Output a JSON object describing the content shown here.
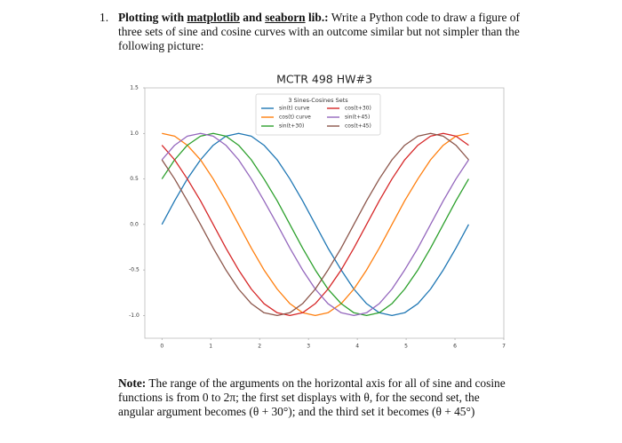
{
  "question": {
    "number": "1.",
    "heading_parts": [
      "Plotting with ",
      "matplotlib",
      " and ",
      "seaborn",
      " lib.:"
    ],
    "text": "Write a Python code to draw a figure of three sets of sine and cosine curves with an outcome similar but not simpler than the following picture:"
  },
  "note": {
    "label": "Note:",
    "text": "The range of the arguments on the horizontal axis for all of sine and cosine functions is from 0 to 2π; the first set displays with θ, for the second set, the angular argument becomes (θ + 30°); and the third set it becomes (θ + 45°)"
  },
  "chart_data": {
    "type": "line",
    "title": "MCTR 498 HW#3",
    "legend_title": "3 Sines-Cosines Sets",
    "x": [
      0,
      0.26,
      0.52,
      0.79,
      1.05,
      1.31,
      1.57,
      1.83,
      2.09,
      2.36,
      2.62,
      2.88,
      3.14,
      3.4,
      3.67,
      3.93,
      4.19,
      4.45,
      4.71,
      4.97,
      5.24,
      5.5,
      5.76,
      6.02,
      6.28
    ],
    "series": [
      {
        "name": "sin(t) curve",
        "color": "#1f77b4",
        "values": [
          0,
          0.26,
          0.5,
          0.71,
          0.87,
          0.97,
          1,
          0.97,
          0.87,
          0.71,
          0.5,
          0.26,
          0,
          -0.26,
          -0.5,
          -0.71,
          -0.87,
          -0.97,
          -1,
          -0.97,
          -0.87,
          -0.71,
          -0.5,
          -0.26,
          0
        ]
      },
      {
        "name": "cos(t) curve",
        "color": "#ff7f0e",
        "values": [
          1,
          0.97,
          0.87,
          0.71,
          0.5,
          0.26,
          0,
          -0.26,
          -0.5,
          -0.71,
          -0.87,
          -0.97,
          -1,
          -0.97,
          -0.87,
          -0.71,
          -0.5,
          -0.26,
          0,
          0.26,
          0.5,
          0.71,
          0.87,
          0.97,
          1
        ]
      },
      {
        "name": "sin(t+30)",
        "color": "#2ca02c",
        "values": [
          0.5,
          0.71,
          0.87,
          0.97,
          1,
          0.97,
          0.87,
          0.71,
          0.5,
          0.26,
          0,
          -0.26,
          -0.5,
          -0.71,
          -0.87,
          -0.97,
          -1,
          -0.97,
          -0.87,
          -0.71,
          -0.5,
          -0.26,
          0,
          0.26,
          0.5
        ]
      },
      {
        "name": "cos(t+30)",
        "color": "#d62728",
        "values": [
          0.87,
          0.71,
          0.5,
          0.26,
          0,
          -0.26,
          -0.5,
          -0.71,
          -0.87,
          -0.97,
          -1,
          -0.97,
          -0.87,
          -0.71,
          -0.5,
          -0.26,
          0,
          0.26,
          0.5,
          0.71,
          0.87,
          0.97,
          1,
          0.97,
          0.87
        ]
      },
      {
        "name": "sin(t+45)",
        "color": "#9467bd",
        "values": [
          0.71,
          0.87,
          0.97,
          1,
          0.97,
          0.87,
          0.71,
          0.5,
          0.26,
          0,
          -0.26,
          -0.5,
          -0.71,
          -0.87,
          -0.97,
          -1,
          -0.97,
          -0.87,
          -0.71,
          -0.5,
          -0.26,
          0,
          0.26,
          0.5,
          0.71
        ]
      },
      {
        "name": "cos(t+45)",
        "color": "#8c564b",
        "values": [
          0.71,
          0.5,
          0.26,
          0,
          -0.26,
          -0.5,
          -0.71,
          -0.87,
          -0.97,
          -1,
          -0.97,
          -0.87,
          -0.71,
          -0.5,
          -0.26,
          0,
          0.26,
          0.5,
          0.71,
          0.87,
          0.97,
          1,
          0.97,
          0.87,
          0.71
        ]
      }
    ],
    "xlim": [
      -0.35,
      7
    ],
    "xticks": [
      0,
      1,
      2,
      3,
      4,
      5,
      6,
      7
    ],
    "ylim": [
      -1.25,
      1.5
    ],
    "yticks": [
      1.5,
      {
        "value": 1,
        "label": "1.0"
      },
      0.5,
      {
        "value": 0,
        "label": "0.0"
      },
      -0.5,
      {
        "value": -1,
        "label": "-1.0"
      }
    ],
    "grid": false,
    "legend": "upper center"
  }
}
